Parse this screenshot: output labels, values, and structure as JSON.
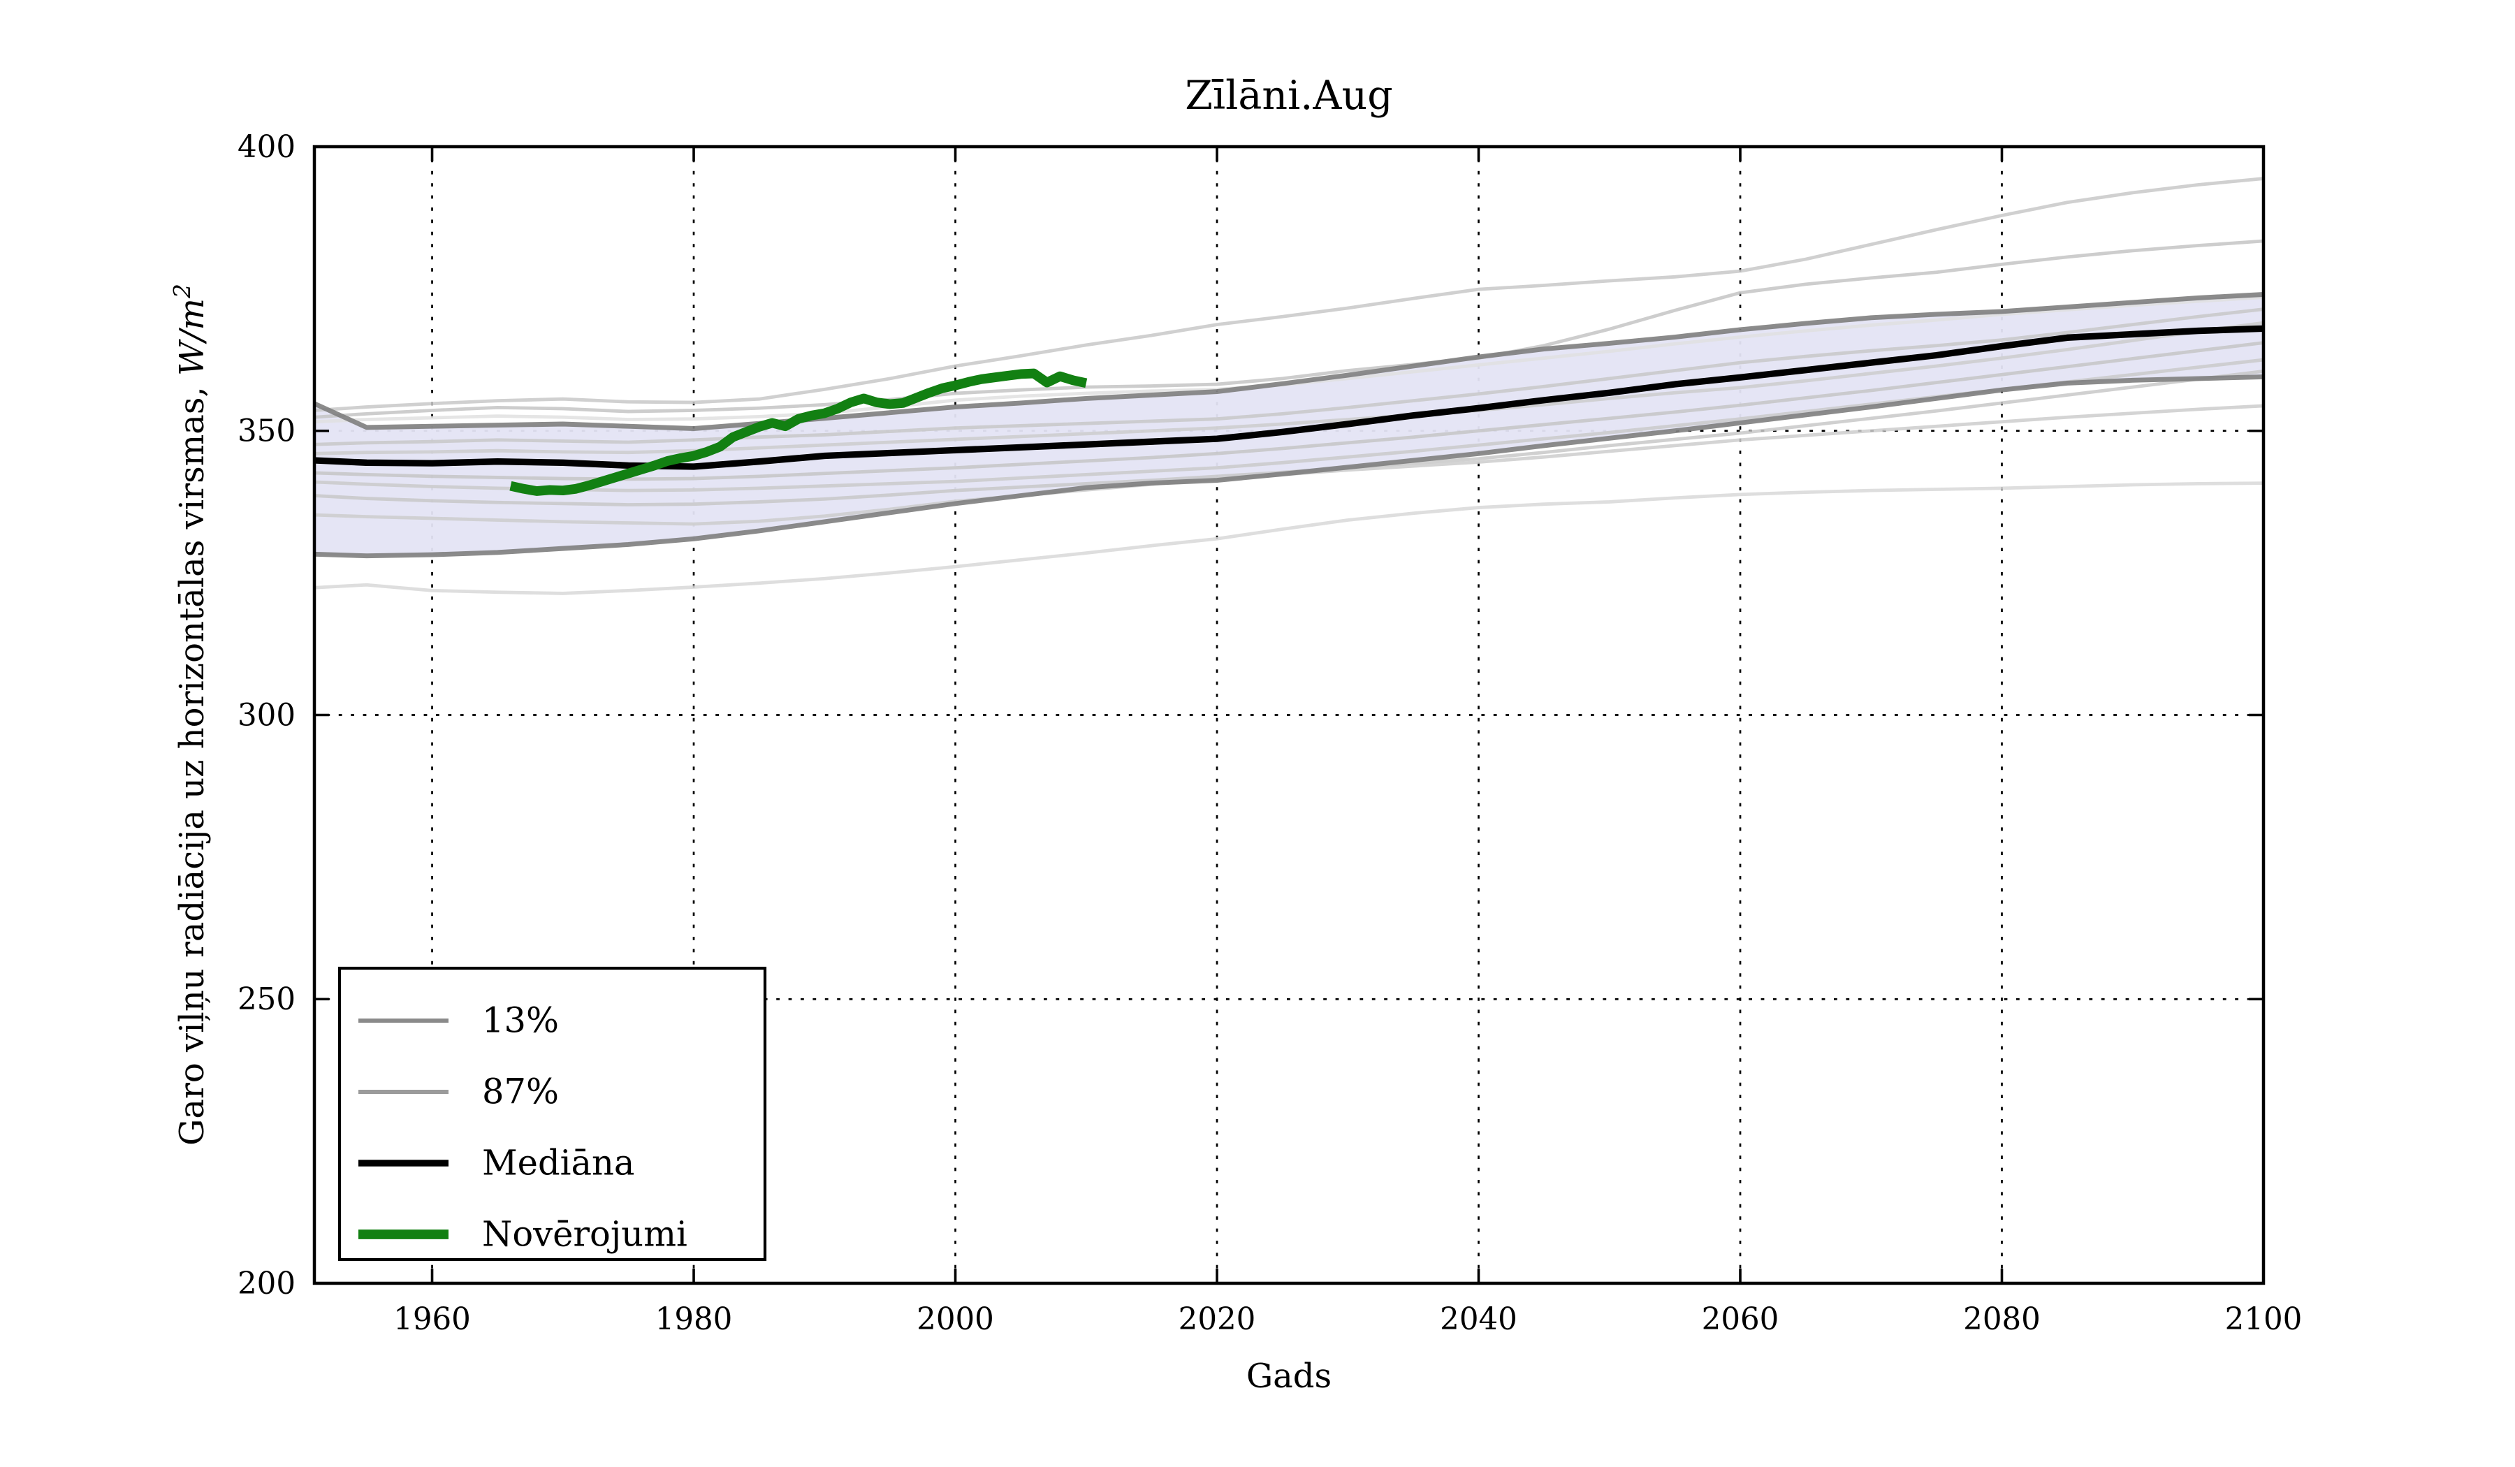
{
  "chart_data": {
    "type": "line",
    "title": "Zīlāni.Aug",
    "xlabel": "Gads",
    "ylabel_prefix": "Garo viļņu radiācija uz horizontālas virsmas, ",
    "ylabel_math": "W/m",
    "ylabel_exponent": "2",
    "xlim": [
      1951,
      2100
    ],
    "ylim": [
      200,
      400
    ],
    "xticks": [
      1960,
      1980,
      2000,
      2020,
      2040,
      2060,
      2080,
      2100
    ],
    "yticks": [
      200,
      250,
      300,
      350,
      400
    ],
    "grid": true,
    "colors": {
      "median": "#000000",
      "observations": "#128012",
      "percentile_edge": "#7e7e7e",
      "band_fill": "#e4e4f4",
      "legend_13": "#8a8a8a",
      "legend_87": "#9b9b9b"
    },
    "years_model": [
      1951,
      1955,
      1960,
      1965,
      1970,
      1975,
      1980,
      1985,
      1990,
      1995,
      2000,
      2005,
      2010,
      2015,
      2020,
      2025,
      2030,
      2035,
      2040,
      2045,
      2050,
      2055,
      2060,
      2065,
      2070,
      2075,
      2080,
      2085,
      2090,
      2095,
      2100
    ],
    "median": [
      344.8,
      344.4,
      344.3,
      344.6,
      344.4,
      343.9,
      343.7,
      344.6,
      345.6,
      346.1,
      346.6,
      347.1,
      347.6,
      348.1,
      348.6,
      349.8,
      351.2,
      352.7,
      354.0,
      355.4,
      356.7,
      358.2,
      359.4,
      360.7,
      362.0,
      363.3,
      364.9,
      366.4,
      367.0,
      367.6,
      368.0
    ],
    "p87": [
      354.8,
      350.6,
      350.8,
      351.0,
      351.2,
      350.8,
      350.4,
      351.3,
      352.2,
      353.2,
      354.2,
      354.9,
      355.7,
      356.3,
      356.9,
      358.3,
      359.8,
      361.4,
      363.0,
      364.4,
      365.4,
      366.5,
      367.8,
      368.9,
      369.9,
      370.5,
      371.0,
      371.8,
      372.6,
      373.4,
      374.0
    ],
    "p13": [
      328.3,
      328.0,
      328.2,
      328.6,
      329.3,
      330.0,
      331.0,
      332.4,
      334.0,
      335.6,
      337.2,
      338.6,
      340.0,
      340.8,
      341.3,
      342.4,
      343.6,
      344.8,
      346.0,
      347.4,
      348.7,
      350.0,
      351.4,
      352.8,
      354.2,
      355.7,
      357.2,
      358.4,
      358.9,
      359.2,
      359.5
    ],
    "ensemble_members": [
      [
        353.6,
        354.2,
        354.8,
        355.3,
        355.6,
        355.1,
        355.0,
        355.6,
        357.3,
        359.2,
        361.4,
        363.2,
        365.1,
        366.8,
        368.7,
        370.1,
        371.6,
        373.3,
        374.9,
        375.6,
        376.4,
        377.1,
        378.1,
        380.2,
        382.8,
        385.4,
        387.9,
        390.2,
        391.9,
        393.3,
        394.4
      ],
      [
        352.4,
        353.0,
        353.6,
        354.1,
        353.9,
        353.4,
        353.6,
        354.0,
        354.6,
        355.5,
        356.6,
        357.2,
        357.7,
        357.9,
        358.2,
        359.2,
        360.6,
        361.7,
        362.8,
        365.0,
        367.9,
        371.2,
        374.3,
        375.8,
        376.9,
        377.9,
        379.3,
        380.6,
        381.7,
        382.6,
        383.4
      ],
      [
        351.6,
        352.0,
        352.3,
        352.6,
        352.4,
        352.0,
        352.1,
        352.5,
        353.1,
        354.2,
        355.4,
        356.1,
        356.6,
        357.0,
        357.3,
        358.1,
        359.2,
        360.4,
        361.6,
        362.8,
        364.0,
        365.3,
        366.5,
        367.6,
        368.6,
        369.5,
        370.5,
        371.3,
        372.1,
        372.8,
        373.5
      ],
      [
        347.6,
        347.9,
        348.1,
        348.4,
        348.2,
        348.0,
        348.4,
        348.9,
        349.3,
        349.9,
        350.5,
        350.9,
        351.3,
        351.7,
        352.1,
        353.0,
        354.1,
        355.3,
        356.5,
        357.8,
        359.2,
        360.6,
        362.0,
        363.1,
        364.1,
        365.0,
        366.0,
        367.3,
        368.7,
        370.1,
        371.4
      ],
      [
        346.0,
        346.2,
        346.3,
        346.5,
        346.3,
        346.2,
        346.5,
        347.0,
        347.5,
        348.0,
        348.5,
        349.0,
        349.5,
        350.0,
        350.5,
        351.2,
        352.0,
        352.8,
        353.6,
        354.6,
        355.7,
        356.7,
        357.6,
        358.8,
        360.1,
        361.4,
        362.8,
        364.3,
        365.9,
        367.5,
        369.0
      ],
      [
        342.6,
        342.3,
        342.0,
        341.8,
        341.6,
        341.5,
        341.6,
        342.0,
        342.5,
        343.0,
        343.5,
        344.1,
        344.7,
        345.3,
        346.0,
        346.9,
        347.9,
        348.9,
        350.0,
        351.1,
        352.2,
        353.3,
        354.5,
        355.8,
        357.1,
        358.5,
        359.9,
        361.3,
        362.7,
        364.1,
        365.5
      ],
      [
        341.0,
        340.6,
        340.2,
        339.9,
        339.7,
        339.5,
        339.6,
        339.9,
        340.3,
        340.7,
        341.1,
        341.7,
        342.3,
        342.9,
        343.5,
        344.4,
        345.4,
        346.4,
        347.5,
        348.6,
        349.7,
        350.9,
        352.1,
        353.4,
        354.7,
        356.0,
        357.3,
        358.6,
        359.9,
        361.2,
        362.5
      ],
      [
        338.6,
        338.1,
        337.7,
        337.4,
        337.2,
        337.0,
        337.1,
        337.5,
        338.0,
        338.7,
        339.5,
        340.1,
        340.7,
        341.3,
        342.0,
        342.7,
        343.5,
        344.3,
        345.1,
        346.2,
        347.4,
        348.5,
        349.6,
        350.9,
        352.2,
        353.5,
        354.9,
        356.3,
        357.7,
        359.1,
        360.5
      ],
      [
        335.2,
        334.9,
        334.6,
        334.3,
        334.0,
        333.8,
        333.6,
        334.1,
        335.0,
        336.2,
        337.6,
        338.6,
        339.6,
        340.6,
        341.5,
        342.3,
        343.1,
        343.8,
        344.5,
        345.4,
        346.4,
        347.4,
        348.4,
        349.2,
        350.0,
        350.8,
        351.6,
        352.4,
        353.1,
        353.8,
        354.4
      ],
      [
        322.4,
        322.9,
        321.9,
        321.6,
        321.4,
        321.9,
        322.5,
        323.2,
        324.0,
        325.0,
        326.1,
        327.3,
        328.5,
        329.8,
        331.0,
        332.7,
        334.3,
        335.5,
        336.5,
        337.1,
        337.5,
        338.2,
        338.8,
        339.2,
        339.5,
        339.7,
        339.9,
        340.2,
        340.5,
        340.7,
        340.8
      ]
    ],
    "ensemble_colors": [
      "#c8c8c8",
      "#c4c4c4",
      "#e0e0e0",
      "#c8c8c8",
      "#cccccc",
      "#c6c6c6",
      "#cacaca",
      "#c8c8c8",
      "#cccccc",
      "#d8d8d8"
    ],
    "observations": {
      "years": [
        1966,
        1967,
        1968,
        1969,
        1970,
        1971,
        1972,
        1973,
        1974,
        1975,
        1976,
        1977,
        1978,
        1979,
        1980,
        1981,
        1982,
        1983,
        1984,
        1985,
        1986,
        1987,
        1988,
        1989,
        1990,
        1991,
        1992,
        1993,
        1994,
        1995,
        1996,
        1997,
        1998,
        1999,
        2000,
        2001,
        2002,
        2003,
        2004,
        2005,
        2006,
        2007,
        2008,
        2009,
        2010
      ],
      "values": [
        340.3,
        339.8,
        339.4,
        339.6,
        339.5,
        339.8,
        340.4,
        341.1,
        341.8,
        342.5,
        343.2,
        343.9,
        344.7,
        345.2,
        345.6,
        346.3,
        347.2,
        348.9,
        349.8,
        350.7,
        351.4,
        350.8,
        352.1,
        352.7,
        353.1,
        353.9,
        355.0,
        355.7,
        355.0,
        354.7,
        354.9,
        355.8,
        356.7,
        357.5,
        358.0,
        358.6,
        359.1,
        359.4,
        359.7,
        360.0,
        360.1,
        358.5,
        359.6,
        358.9,
        358.4
      ]
    },
    "legend": [
      {
        "label": "13%",
        "color": "#8a8a8a",
        "width": 2.0
      },
      {
        "label": "87%",
        "color": "#9b9b9b",
        "width": 2.0
      },
      {
        "label": "Mediāna",
        "color": "#000000",
        "width": 3.2
      },
      {
        "label": "Novērojumi",
        "color": "#128012",
        "width": 4.6
      }
    ],
    "legend_position": "lower left"
  }
}
